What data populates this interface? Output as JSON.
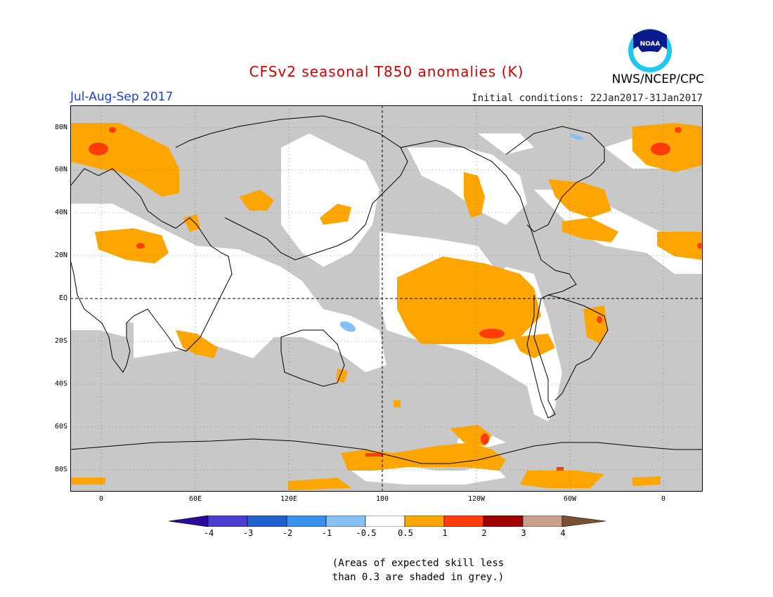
{
  "header": {
    "title": "CFSv2 seasonal T850 anomalies (K)",
    "period": "Jul-Aug-Sep 2017",
    "initial_conditions": "Initial conditions: 22Jan2017-31Jan2017",
    "agency": "NWS/NCEP/CPC",
    "logo_text": "NOAA"
  },
  "colors": {
    "title": "#d40000",
    "period": "#1a3fd6",
    "grey_skill": "#c8c8c8",
    "anom_0_5_1": "#ffa500",
    "anom_1_2": "#ff3c0a",
    "anom_2_3": "#a00000",
    "anom_3_4": "#c8a08c",
    "anom_gt4": "#7a5032",
    "anom_neg_1_0_5": "#86c0f5",
    "anom_neg_2_1": "#3b8ff0",
    "anom_neg_3_2": "#1e60d0",
    "anom_neg_4_3": "#4a3ecf",
    "anom_lt_neg4": "#2a0a9a"
  },
  "map": {
    "lat_labels": [
      "80N",
      "60N",
      "40N",
      "20N",
      "EQ",
      "20S",
      "40S",
      "60S",
      "80S"
    ],
    "lon_labels": [
      "0",
      "60E",
      "120E",
      "180",
      "120W",
      "60W",
      "0"
    ]
  },
  "colorbar": {
    "labels": [
      "-4",
      "-3",
      "-2",
      "-1",
      "-0.5",
      "0.5",
      "1",
      "2",
      "3",
      "4"
    ],
    "colors": [
      "#2a0a9a",
      "#4a3ecf",
      "#1e60d0",
      "#3b8ff0",
      "#86c0f5",
      "#ffffff",
      "#ffa500",
      "#ff3c0a",
      "#a00000",
      "#c8a08c",
      "#7a5032"
    ]
  },
  "note": {
    "line1": "(Areas of expected skill less",
    "line2": "than 0.3 are shaded in grey.)"
  }
}
